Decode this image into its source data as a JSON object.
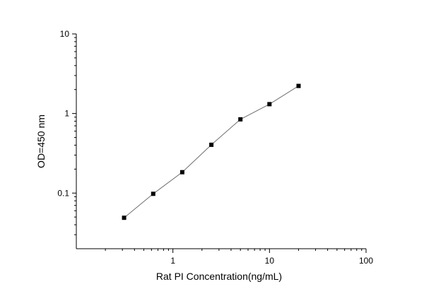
{
  "chart_data": {
    "type": "line",
    "title": "",
    "xlabel": "Rat PI  Concentration(ng/mL)",
    "ylabel": "OD=450 nm",
    "x_scale": "log",
    "y_scale": "log",
    "xlim": [
      0.1,
      100
    ],
    "ylim": [
      0.02,
      10
    ],
    "x_ticks": [
      {
        "value": 1,
        "label": "1"
      },
      {
        "value": 10,
        "label": "10"
      },
      {
        "value": 100,
        "label": "100"
      }
    ],
    "y_ticks": [
      {
        "value": 0.1,
        "label": "0.1"
      },
      {
        "value": 1,
        "label": "1"
      },
      {
        "value": 10,
        "label": "10"
      }
    ],
    "grid": false,
    "legend": "none",
    "series": [
      {
        "marker": "square",
        "color": "#000000",
        "line_color": "#6e6e6e",
        "x": [
          0.3125,
          0.625,
          1.25,
          2.5,
          5,
          10,
          20
        ],
        "y": [
          0.049,
          0.098,
          0.183,
          0.405,
          0.845,
          1.31,
          2.22
        ]
      }
    ]
  }
}
